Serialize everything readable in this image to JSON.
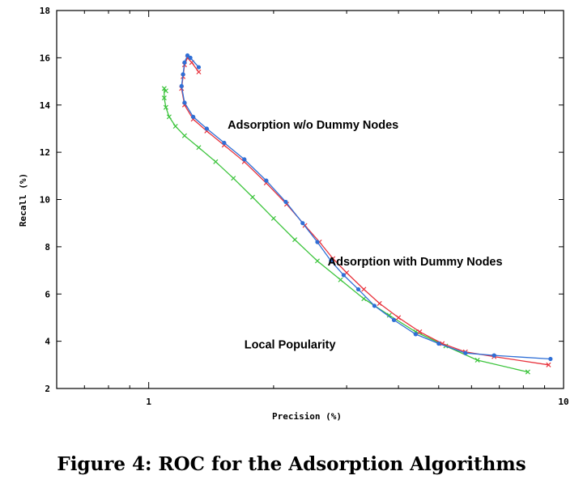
{
  "caption": "Figure 4: ROC for the Adsorption Algorithms",
  "chart_data": {
    "type": "line",
    "title": "",
    "xlabel": "Precision (%)",
    "ylabel": "Recall (%)",
    "xscale": "log",
    "xlim": [
      0.6,
      10
    ],
    "ylim": [
      2,
      18
    ],
    "xticks": [
      1,
      10
    ],
    "yticks": [
      2,
      4,
      6,
      8,
      10,
      12,
      14,
      16,
      18
    ],
    "grid": false,
    "colors": {
      "with_dummy": "#e8323c",
      "without_dummy": "#2f6fd6",
      "local_popularity": "#3cc43c"
    },
    "annotations": [
      {
        "text": "Adsorption w/o Dummy Nodes",
        "x": 1.55,
        "y": 13.0
      },
      {
        "text": "Adsorption with Dummy Nodes",
        "x": 2.7,
        "y": 7.2
      },
      {
        "text": "Local Popularity",
        "x": 1.7,
        "y": 3.7
      }
    ],
    "series": [
      {
        "id": "with_dummy",
        "x": [
          1.32,
          1.27,
          1.24,
          1.22,
          1.21,
          1.2,
          1.22,
          1.28,
          1.38,
          1.52,
          1.7,
          1.92,
          2.15,
          2.38,
          2.58,
          2.78,
          3.0,
          3.3,
          3.6,
          4.0,
          4.5,
          5.1,
          5.8,
          6.8,
          9.2
        ],
        "y": [
          15.4,
          15.8,
          16.0,
          15.7,
          15.2,
          14.7,
          14.0,
          13.4,
          12.9,
          12.3,
          11.6,
          10.7,
          9.8,
          8.9,
          8.2,
          7.5,
          6.9,
          6.2,
          5.6,
          5.0,
          4.4,
          3.9,
          3.55,
          3.35,
          3.0
        ]
      },
      {
        "id": "without_dummy",
        "x": [
          1.32,
          1.26,
          1.24,
          1.22,
          1.21,
          1.2,
          1.22,
          1.28,
          1.38,
          1.52,
          1.7,
          1.92,
          2.14,
          2.35,
          2.55,
          2.75,
          2.95,
          3.2,
          3.5,
          3.9,
          4.4,
          5.0,
          5.8,
          6.8,
          9.3
        ],
        "y": [
          15.6,
          16.0,
          16.1,
          15.8,
          15.3,
          14.8,
          14.1,
          13.5,
          13.0,
          12.4,
          11.7,
          10.8,
          9.9,
          9.0,
          8.2,
          7.4,
          6.8,
          6.2,
          5.5,
          4.9,
          4.3,
          3.9,
          3.5,
          3.4,
          3.25
        ]
      },
      {
        "id": "local_popularity",
        "x": [
          1.1,
          1.09,
          1.09,
          1.1,
          1.12,
          1.16,
          1.22,
          1.32,
          1.45,
          1.6,
          1.78,
          2.0,
          2.25,
          2.55,
          2.9,
          3.3,
          3.8,
          4.4,
          5.2,
          6.2,
          8.2
        ],
        "y": [
          14.6,
          14.7,
          14.3,
          13.9,
          13.5,
          13.1,
          12.7,
          12.2,
          11.6,
          10.9,
          10.1,
          9.2,
          8.3,
          7.4,
          6.6,
          5.8,
          5.1,
          4.4,
          3.8,
          3.2,
          2.7
        ]
      }
    ]
  }
}
